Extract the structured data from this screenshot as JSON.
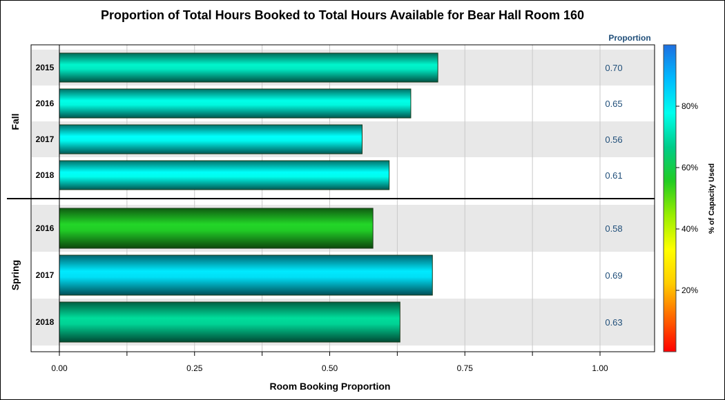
{
  "chart_data": {
    "type": "bar",
    "orientation": "horizontal",
    "title": "Proportion of Total Hours Booked to Total Hours Available for Bear Hall Room 160",
    "xlabel": "Room Booking Proportion",
    "xlim": [
      0,
      1.1
    ],
    "x_ticks": [
      "0.00",
      "0.25",
      "0.50",
      "0.75",
      "1.00"
    ],
    "x_tick_values": [
      0,
      0.25,
      0.5,
      0.75,
      1.0
    ],
    "value_column_header": "Proportion",
    "grid": true,
    "groups": [
      {
        "name": "Fall",
        "categories": [
          "2015",
          "2016",
          "2017",
          "2018"
        ],
        "values": [
          0.7,
          0.65,
          0.56,
          0.61
        ],
        "value_labels": [
          "0.70",
          "0.65",
          "0.56",
          "0.61"
        ],
        "capacity_used_pct": [
          73,
          76,
          79,
          78
        ]
      },
      {
        "name": "Spring",
        "categories": [
          "2016",
          "2017",
          "2018"
        ],
        "values": [
          0.58,
          0.69,
          0.63
        ],
        "value_labels": [
          "0.58",
          "0.69",
          "0.63"
        ],
        "capacity_used_pct": [
          56,
          83,
          68
        ]
      }
    ],
    "color_legend": {
      "title": "% of Capacity Used",
      "placement": "right",
      "range": [
        0,
        100
      ],
      "ticks": [
        20,
        40,
        60,
        80
      ],
      "tick_labels": [
        "20%",
        "40%",
        "60%",
        "80%"
      ],
      "colors": [
        "#ff0000",
        "#ff6600",
        "#ffcc00",
        "#ffff00",
        "#99ee00",
        "#22cc22",
        "#00cc88",
        "#00ffee",
        "#00bbff",
        "#1e6fe0"
      ]
    }
  }
}
